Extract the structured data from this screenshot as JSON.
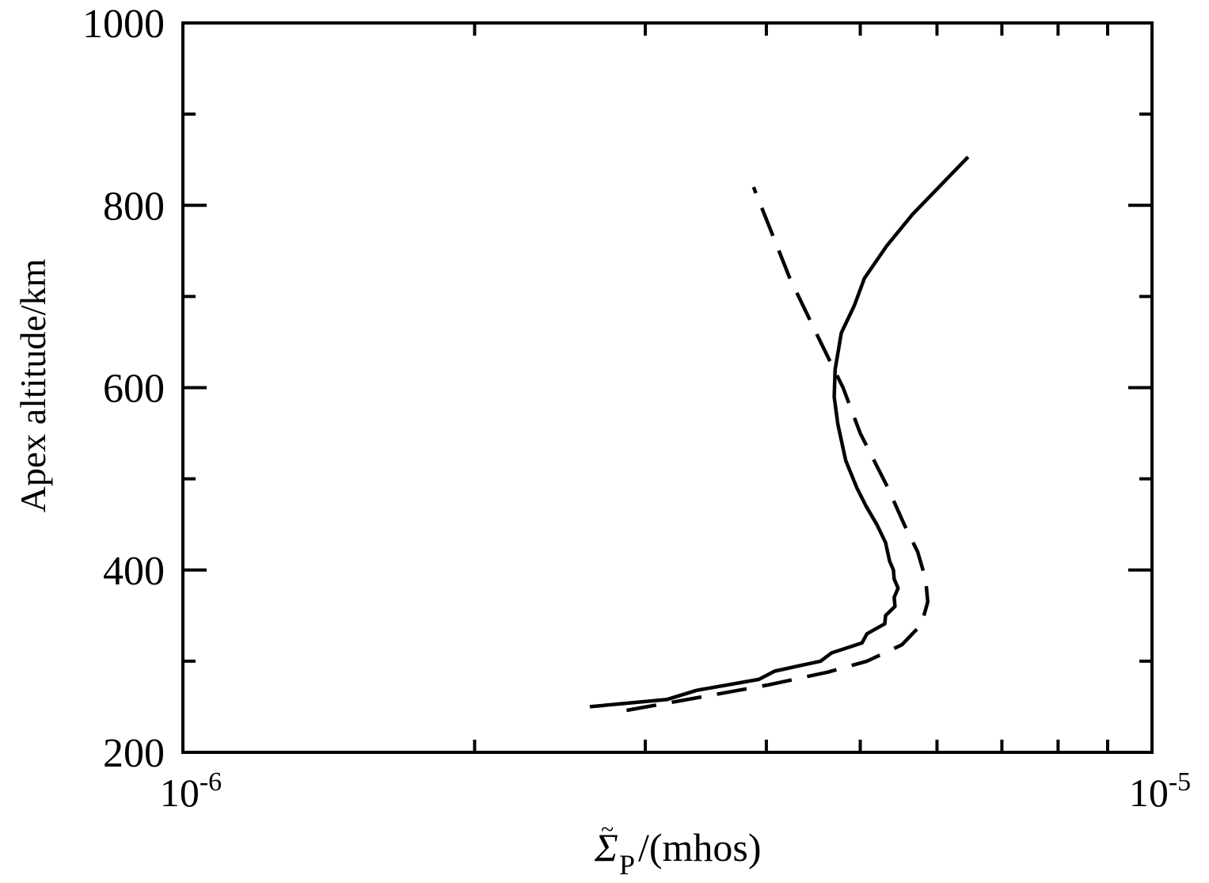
{
  "chart_data": {
    "type": "line",
    "xlabel": {
      "symbol": "Σ",
      "tilde": "~",
      "subscript": "P",
      "unit": "/(mhos)"
    },
    "ylabel": "Apex altitude/km",
    "xscale": "log",
    "xlim": [
      1e-06,
      1e-05
    ],
    "ylim": [
      200,
      1000
    ],
    "x_tick_labels": [
      {
        "value": 1e-06,
        "base": "10",
        "exp": "-6"
      },
      {
        "value": 1e-05,
        "base": "10",
        "exp": "-5"
      }
    ],
    "y_ticks": [
      200,
      400,
      600,
      800,
      1000
    ],
    "y_minor_ticks": [
      300,
      500,
      700,
      900
    ],
    "x_minor_ticks": [
      2e-06,
      3e-06,
      4e-06,
      5e-06,
      6e-06,
      7e-06,
      8e-06,
      9e-06
    ],
    "grid": false,
    "legend": "none",
    "series": [
      {
        "style": "solid",
        "points": [
          [
            2.63e-06,
            250
          ],
          [
            3.16e-06,
            258
          ],
          [
            3.39e-06,
            268
          ],
          [
            3.93e-06,
            280
          ],
          [
            4.08e-06,
            289
          ],
          [
            4.55e-06,
            300
          ],
          [
            4.67e-06,
            309
          ],
          [
            5.02e-06,
            320
          ],
          [
            5.08e-06,
            330
          ],
          [
            5.3e-06,
            341
          ],
          [
            5.31e-06,
            350
          ],
          [
            5.43e-06,
            360
          ],
          [
            5.42e-06,
            370
          ],
          [
            5.47e-06,
            380
          ],
          [
            5.42e-06,
            390
          ],
          [
            5.41e-06,
            400
          ],
          [
            5.36e-06,
            410
          ],
          [
            5.31e-06,
            430
          ],
          [
            5.2e-06,
            450
          ],
          [
            5.07e-06,
            470
          ],
          [
            4.96e-06,
            490
          ],
          [
            4.83e-06,
            520
          ],
          [
            4.74e-06,
            560
          ],
          [
            4.7e-06,
            590
          ],
          [
            4.71e-06,
            620
          ],
          [
            4.78e-06,
            660
          ],
          [
            4.93e-06,
            690
          ],
          [
            5.05e-06,
            720
          ],
          [
            5.32e-06,
            755
          ],
          [
            5.66e-06,
            790
          ],
          [
            6.46e-06,
            853
          ]
        ]
      },
      {
        "style": "dashed",
        "points": [
          [
            2.87e-06,
            246
          ],
          [
            3.4e-06,
            260
          ],
          [
            4.02e-06,
            274
          ],
          [
            4.63e-06,
            288
          ],
          [
            5.08e-06,
            300
          ],
          [
            5.52e-06,
            318
          ],
          [
            5.78e-06,
            340
          ],
          [
            5.87e-06,
            365
          ],
          [
            5.84e-06,
            390
          ],
          [
            5.73e-06,
            420
          ],
          [
            5.55e-06,
            450
          ],
          [
            5.34e-06,
            490
          ],
          [
            5e-06,
            550
          ],
          [
            4.8e-06,
            600
          ],
          [
            4.55e-06,
            650
          ],
          [
            4.23e-06,
            720
          ],
          [
            3.88e-06,
            820
          ]
        ]
      }
    ]
  }
}
